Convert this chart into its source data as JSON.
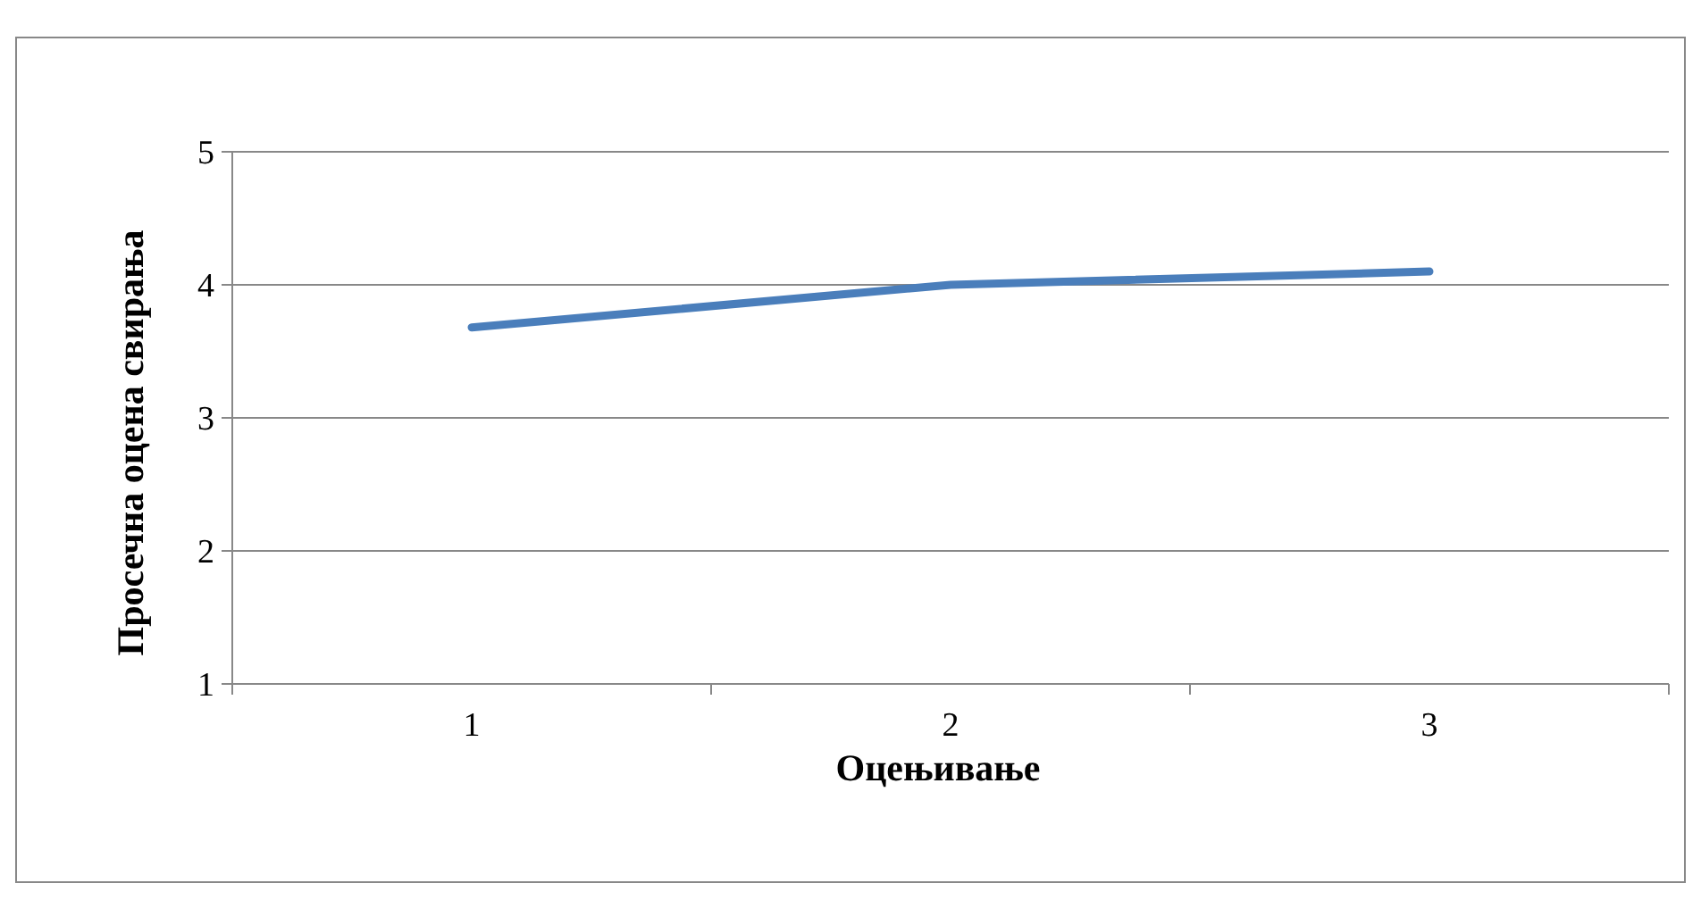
{
  "chart_data": {
    "type": "line",
    "xlabel": "Оцењивање",
    "ylabel": "Просечна оцена свирања",
    "categories": [
      "1",
      "2",
      "3"
    ],
    "series": [
      {
        "color": "#4a7ebb",
        "values": [
          3.68,
          4.0,
          4.1
        ]
      }
    ],
    "ylim": [
      1,
      5
    ],
    "yticks": [
      1,
      2,
      3,
      4,
      5
    ],
    "grid": "y",
    "marker": "none",
    "line_style": "solid"
  }
}
